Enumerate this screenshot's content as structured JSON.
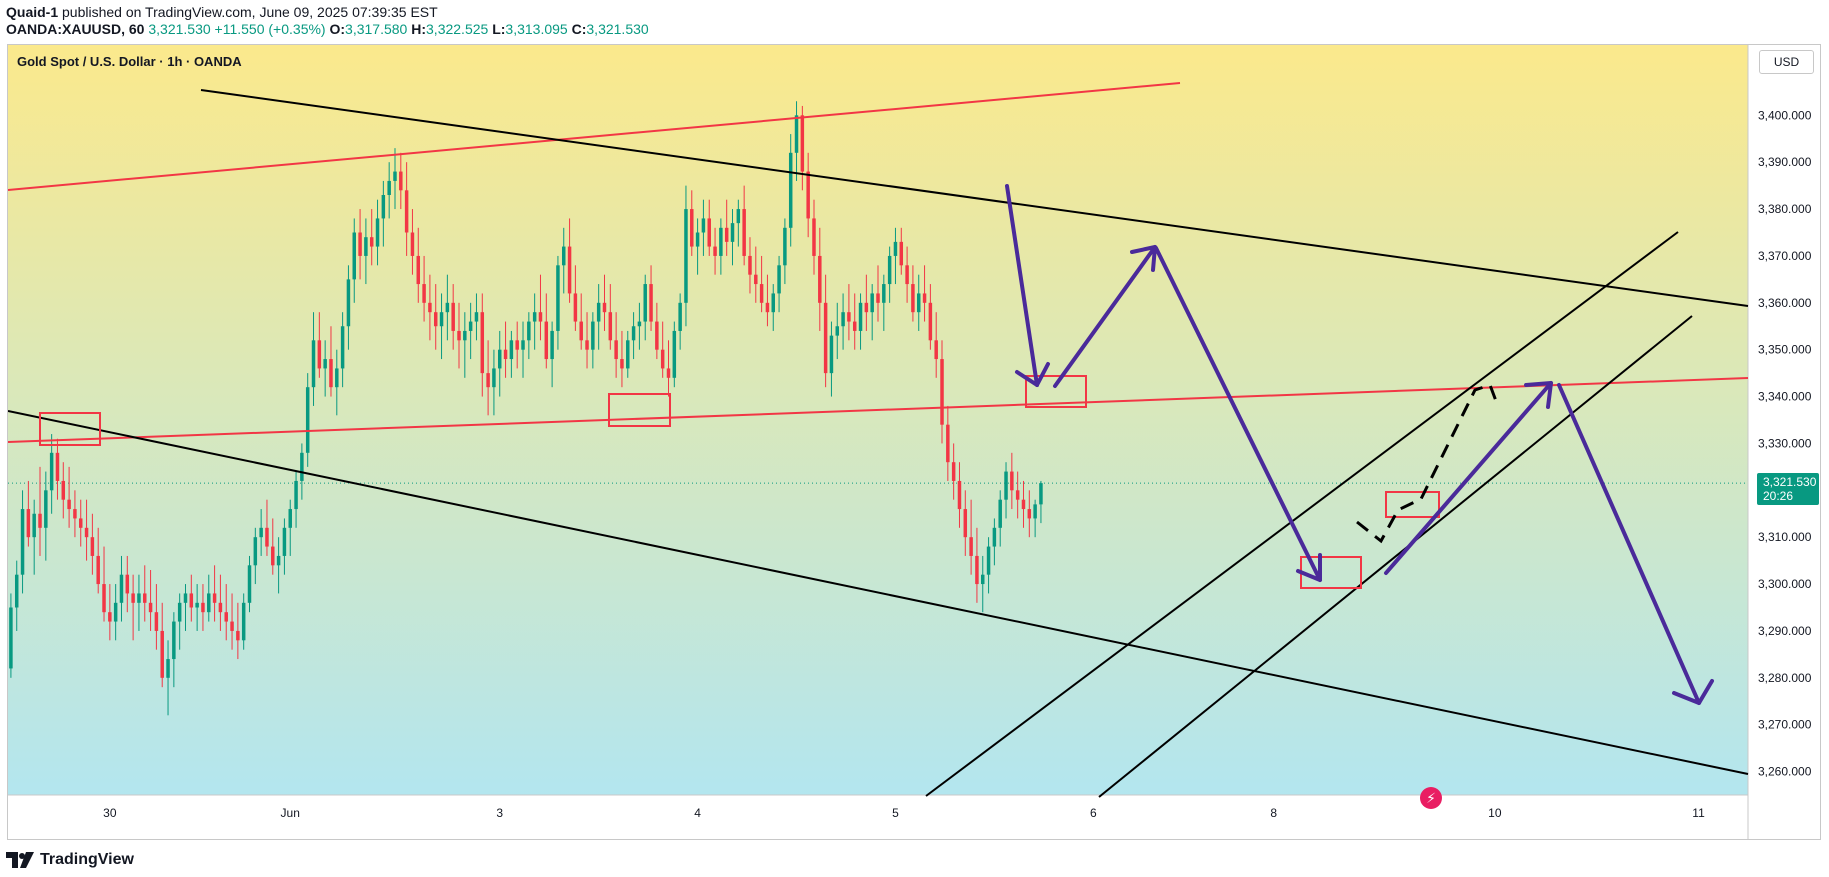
{
  "header": {
    "author": "Quaid-1",
    "published_text": "published on TradingView.com, June 09, 2025 07:39:35 EST",
    "symbol": "OANDA:XAUUSD, 60",
    "last": "3,321.530",
    "change": "+11.550 (+0.35%)",
    "o_label": "O:",
    "o_value": "3,317.580",
    "h_label": "H:",
    "h_value": "3,322.525",
    "l_label": "L:",
    "l_value": "3,313.095",
    "c_label": "C:",
    "c_value": "3,321.530"
  },
  "chart": {
    "title": "Gold Spot / U.S. Dollar · 1h · OANDA",
    "currency_button": "USD",
    "price_badge": {
      "price": "3,321.530",
      "countdown": "20:26"
    }
  },
  "footer": {
    "logo_text": "TradingView"
  },
  "colors": {
    "up": "#089981",
    "down": "#f23645",
    "trendline_black": "#000000",
    "trendline_red": "#f23645",
    "arrow_purple": "#4a2a9a",
    "bg_top": "#fbe98c",
    "bg_bottom": "#b3e6ef"
  },
  "chart_data": {
    "type": "candlestick",
    "title": "Gold Spot / U.S. Dollar · 1h · OANDA",
    "ylabel": "USD",
    "ylim": [
      3255,
      3415
    ],
    "y_ticks": [
      3260,
      3270,
      3280,
      3290,
      3300,
      3310,
      3320,
      3330,
      3340,
      3350,
      3360,
      3370,
      3380,
      3390,
      3400
    ],
    "y_tick_labels": [
      "3,260.000",
      "3,270.000",
      "3,280.000",
      "3,290.000",
      "3,300.000",
      "3,310.000",
      "3,320.000",
      "3,330.000",
      "3,340.000",
      "3,350.000",
      "3,360.000",
      "3,370.000",
      "3,380.000",
      "3,390.000",
      "3,400.000"
    ],
    "x_ticks": [
      {
        "label": "30",
        "bar": 17
      },
      {
        "label": "Jun",
        "bar": 48
      },
      {
        "label": "3",
        "bar": 84
      },
      {
        "label": "4",
        "bar": 118
      },
      {
        "label": "5",
        "bar": 152
      },
      {
        "label": "6",
        "bar": 186
      },
      {
        "label": "8",
        "bar": 217
      },
      {
        "label": "10",
        "bar": 255
      },
      {
        "label": "11",
        "bar": 290
      }
    ],
    "x_range": [
      -0.5,
      298.5
    ],
    "last_price": 3321.53,
    "candles": [
      [
        3282,
        3298,
        3280,
        3295
      ],
      [
        3295,
        3305,
        3290,
        3302
      ],
      [
        3302,
        3320,
        3298,
        3316
      ],
      [
        3316,
        3322,
        3308,
        3310
      ],
      [
        3310,
        3318,
        3302,
        3315
      ],
      [
        3315,
        3325,
        3306,
        3312
      ],
      [
        3312,
        3324,
        3305,
        3320
      ],
      [
        3320,
        3332,
        3315,
        3328
      ],
      [
        3328,
        3331,
        3318,
        3322
      ],
      [
        3322,
        3326,
        3314,
        3318
      ],
      [
        3318,
        3325,
        3312,
        3316
      ],
      [
        3316,
        3320,
        3310,
        3314
      ],
      [
        3314,
        3318,
        3308,
        3312
      ],
      [
        3312,
        3318,
        3305,
        3310
      ],
      [
        3310,
        3315,
        3302,
        3306
      ],
      [
        3306,
        3312,
        3298,
        3300
      ],
      [
        3300,
        3308,
        3292,
        3294
      ],
      [
        3294,
        3300,
        3288,
        3292
      ],
      [
        3292,
        3300,
        3288,
        3296
      ],
      [
        3296,
        3306,
        3292,
        3302
      ],
      [
        3302,
        3306,
        3294,
        3298
      ],
      [
        3298,
        3302,
        3288,
        3296
      ],
      [
        3296,
        3302,
        3290,
        3298
      ],
      [
        3298,
        3304,
        3292,
        3296
      ],
      [
        3296,
        3303,
        3290,
        3294
      ],
      [
        3294,
        3300,
        3286,
        3290
      ],
      [
        3290,
        3296,
        3278,
        3280
      ],
      [
        3280,
        3288,
        3272,
        3284
      ],
      [
        3284,
        3294,
        3278,
        3292
      ],
      [
        3292,
        3298,
        3286,
        3296
      ],
      [
        3296,
        3300,
        3290,
        3298
      ],
      [
        3298,
        3302,
        3292,
        3295
      ],
      [
        3295,
        3300,
        3290,
        3296
      ],
      [
        3296,
        3300,
        3290,
        3294
      ],
      [
        3294,
        3302,
        3292,
        3298
      ],
      [
        3298,
        3304,
        3292,
        3296
      ],
      [
        3296,
        3302,
        3290,
        3294
      ],
      [
        3294,
        3300,
        3288,
        3292
      ],
      [
        3292,
        3298,
        3286,
        3290
      ],
      [
        3290,
        3296,
        3284,
        3288
      ],
      [
        3288,
        3298,
        3286,
        3296
      ],
      [
        3296,
        3306,
        3294,
        3304
      ],
      [
        3304,
        3312,
        3300,
        3310
      ],
      [
        3310,
        3316,
        3306,
        3312
      ],
      [
        3312,
        3318,
        3306,
        3308
      ],
      [
        3308,
        3314,
        3302,
        3304
      ],
      [
        3304,
        3310,
        3298,
        3306
      ],
      [
        3306,
        3314,
        3302,
        3312
      ],
      [
        3312,
        3318,
        3306,
        3316
      ],
      [
        3316,
        3324,
        3312,
        3322
      ],
      [
        3322,
        3330,
        3318,
        3328
      ],
      [
        3328,
        3345,
        3325,
        3342
      ],
      [
        3342,
        3358,
        3338,
        3352
      ],
      [
        3352,
        3358,
        3344,
        3346
      ],
      [
        3346,
        3352,
        3340,
        3348
      ],
      [
        3348,
        3355,
        3340,
        3342
      ],
      [
        3342,
        3350,
        3336,
        3346
      ],
      [
        3346,
        3358,
        3342,
        3355
      ],
      [
        3355,
        3368,
        3350,
        3365
      ],
      [
        3365,
        3378,
        3360,
        3375
      ],
      [
        3375,
        3380,
        3365,
        3370
      ],
      [
        3370,
        3378,
        3364,
        3374
      ],
      [
        3374,
        3380,
        3368,
        3372
      ],
      [
        3372,
        3382,
        3368,
        3378
      ],
      [
        3378,
        3386,
        3372,
        3383
      ],
      [
        3383,
        3390,
        3378,
        3386
      ],
      [
        3386,
        3393,
        3380,
        3388
      ],
      [
        3388,
        3392,
        3380,
        3384
      ],
      [
        3384,
        3390,
        3370,
        3375
      ],
      [
        3375,
        3380,
        3366,
        3370
      ],
      [
        3370,
        3376,
        3360,
        3364
      ],
      [
        3364,
        3370,
        3356,
        3360
      ],
      [
        3360,
        3366,
        3352,
        3358
      ],
      [
        3358,
        3364,
        3350,
        3355
      ],
      [
        3355,
        3362,
        3348,
        3358
      ],
      [
        3358,
        3366,
        3352,
        3360
      ],
      [
        3360,
        3364,
        3350,
        3354
      ],
      [
        3354,
        3360,
        3346,
        3352
      ],
      [
        3352,
        3358,
        3344,
        3354
      ],
      [
        3354,
        3360,
        3348,
        3356
      ],
      [
        3356,
        3362,
        3352,
        3358
      ],
      [
        3358,
        3362,
        3340,
        3345
      ],
      [
        3345,
        3352,
        3336,
        3342
      ],
      [
        3342,
        3350,
        3336,
        3346
      ],
      [
        3346,
        3354,
        3340,
        3350
      ],
      [
        3350,
        3356,
        3344,
        3348
      ],
      [
        3348,
        3354,
        3344,
        3352
      ],
      [
        3352,
        3356,
        3346,
        3350
      ],
      [
        3350,
        3356,
        3344,
        3352
      ],
      [
        3352,
        3358,
        3348,
        3356
      ],
      [
        3356,
        3362,
        3350,
        3358
      ],
      [
        3358,
        3366,
        3352,
        3356
      ],
      [
        3356,
        3362,
        3346,
        3348
      ],
      [
        3348,
        3356,
        3342,
        3354
      ],
      [
        3354,
        3370,
        3350,
        3368
      ],
      [
        3368,
        3376,
        3362,
        3372
      ],
      [
        3372,
        3378,
        3360,
        3362
      ],
      [
        3362,
        3368,
        3354,
        3356
      ],
      [
        3356,
        3362,
        3350,
        3352
      ],
      [
        3352,
        3358,
        3346,
        3350
      ],
      [
        3350,
        3358,
        3346,
        3356
      ],
      [
        3356,
        3364,
        3350,
        3360
      ],
      [
        3360,
        3366,
        3354,
        3358
      ],
      [
        3358,
        3364,
        3350,
        3352
      ],
      [
        3352,
        3358,
        3344,
        3348
      ],
      [
        3348,
        3354,
        3342,
        3346
      ],
      [
        3346,
        3354,
        3344,
        3352
      ],
      [
        3352,
        3358,
        3348,
        3355
      ],
      [
        3355,
        3360,
        3350,
        3356
      ],
      [
        3356,
        3366,
        3352,
        3364
      ],
      [
        3364,
        3368,
        3354,
        3356
      ],
      [
        3356,
        3360,
        3348,
        3350
      ],
      [
        3350,
        3356,
        3344,
        3346
      ],
      [
        3346,
        3352,
        3340,
        3344
      ],
      [
        3344,
        3356,
        3342,
        3354
      ],
      [
        3354,
        3362,
        3350,
        3360
      ],
      [
        3360,
        3385,
        3355,
        3380
      ],
      [
        3380,
        3384,
        3370,
        3372
      ],
      [
        3372,
        3378,
        3366,
        3375
      ],
      [
        3375,
        3382,
        3370,
        3378
      ],
      [
        3378,
        3382,
        3370,
        3372
      ],
      [
        3372,
        3376,
        3366,
        3370
      ],
      [
        3370,
        3378,
        3366,
        3376
      ],
      [
        3376,
        3382,
        3370,
        3373
      ],
      [
        3373,
        3380,
        3368,
        3377
      ],
      [
        3377,
        3382,
        3372,
        3380
      ],
      [
        3380,
        3385,
        3368,
        3370
      ],
      [
        3370,
        3374,
        3362,
        3366
      ],
      [
        3366,
        3372,
        3360,
        3364
      ],
      [
        3364,
        3370,
        3358,
        3360
      ],
      [
        3360,
        3366,
        3355,
        3358
      ],
      [
        3358,
        3364,
        3354,
        3362
      ],
      [
        3362,
        3370,
        3358,
        3368
      ],
      [
        3368,
        3378,
        3364,
        3376
      ],
      [
        3376,
        3396,
        3372,
        3392
      ],
      [
        3392,
        3403,
        3386,
        3400
      ],
      [
        3400,
        3402,
        3384,
        3388
      ],
      [
        3388,
        3392,
        3374,
        3378
      ],
      [
        3378,
        3382,
        3366,
        3370
      ],
      [
        3370,
        3376,
        3354,
        3360
      ],
      [
        3360,
        3366,
        3342,
        3345
      ],
      [
        3345,
        3356,
        3340,
        3353
      ],
      [
        3353,
        3360,
        3348,
        3355
      ],
      [
        3355,
        3362,
        3350,
        3358
      ],
      [
        3358,
        3364,
        3352,
        3356
      ],
      [
        3356,
        3362,
        3350,
        3354
      ],
      [
        3354,
        3362,
        3350,
        3360
      ],
      [
        3360,
        3366,
        3354,
        3358
      ],
      [
        3358,
        3364,
        3352,
        3362
      ],
      [
        3362,
        3368,
        3356,
        3360
      ],
      [
        3360,
        3366,
        3354,
        3364
      ],
      [
        3364,
        3372,
        3360,
        3370
      ],
      [
        3370,
        3376,
        3364,
        3373
      ],
      [
        3373,
        3376,
        3366,
        3368
      ],
      [
        3368,
        3372,
        3360,
        3364
      ],
      [
        3364,
        3368,
        3356,
        3358
      ],
      [
        3358,
        3366,
        3354,
        3362
      ],
      [
        3362,
        3368,
        3356,
        3360
      ],
      [
        3360,
        3364,
        3350,
        3352
      ],
      [
        3352,
        3358,
        3344,
        3348
      ],
      [
        3348,
        3352,
        3330,
        3334
      ],
      [
        3334,
        3338,
        3322,
        3326
      ],
      [
        3326,
        3330,
        3318,
        3322
      ],
      [
        3322,
        3326,
        3312,
        3316
      ],
      [
        3316,
        3320,
        3306,
        3310
      ],
      [
        3310,
        3318,
        3302,
        3306
      ],
      [
        3306,
        3312,
        3296,
        3300
      ],
      [
        3300,
        3306,
        3294,
        3302
      ],
      [
        3302,
        3310,
        3298,
        3308
      ],
      [
        3308,
        3314,
        3304,
        3312
      ],
      [
        3312,
        3320,
        3308,
        3318
      ],
      [
        3318,
        3326,
        3314,
        3324
      ],
      [
        3324,
        3328,
        3316,
        3320
      ],
      [
        3320,
        3324,
        3314,
        3318
      ],
      [
        3318,
        3322,
        3312,
        3316
      ],
      [
        3316,
        3320,
        3310,
        3314
      ],
      [
        3314,
        3318,
        3310,
        3317
      ],
      [
        3317,
        3322,
        3313,
        3321.53
      ]
    ]
  }
}
